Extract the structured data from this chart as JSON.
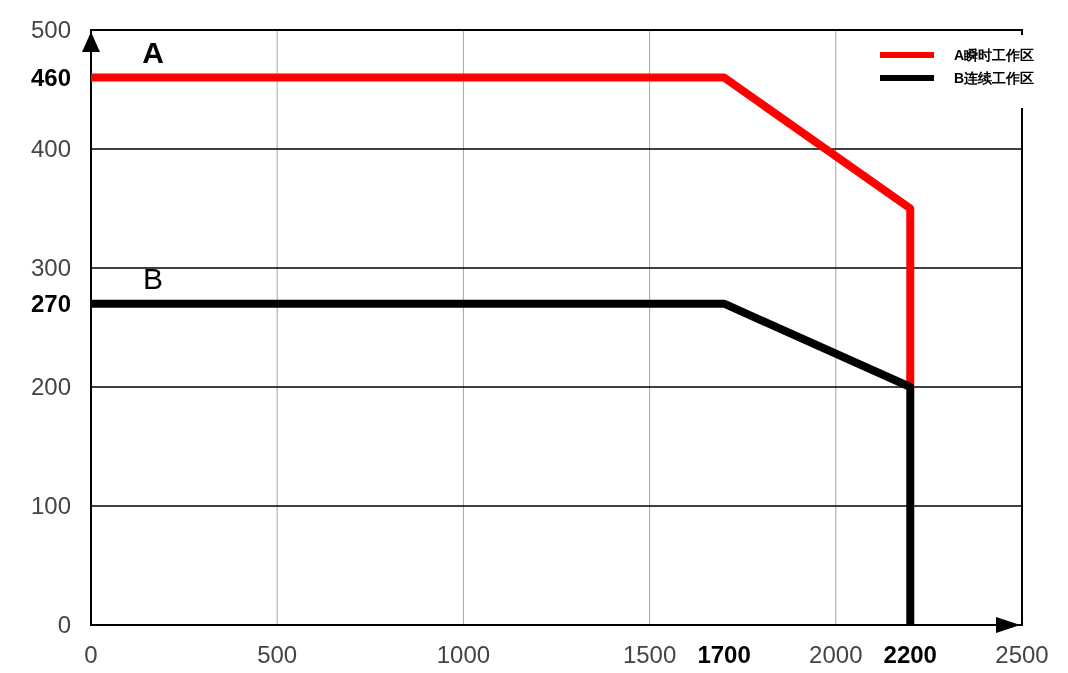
{
  "chart_data": {
    "type": "line",
    "x": [
      0,
      1700,
      2200,
      2200
    ],
    "series": [
      {
        "name": "A瞬时工作区",
        "color": "#ff0000",
        "values": [
          460,
          460,
          350,
          200
        ]
      },
      {
        "name": "B连续工作区",
        "color": "#000000",
        "values": [
          270,
          270,
          200,
          0
        ]
      }
    ],
    "xlim": [
      0,
      2500
    ],
    "ylim": [
      0,
      500
    ],
    "xticks": [
      0,
      500,
      1000,
      1500,
      {
        "value": 1700,
        "label": "1700"
      },
      2000,
      {
        "value": 2200,
        "label": "2200"
      },
      2500
    ],
    "yticks": [
      0,
      100,
      200,
      {
        "value": 270,
        "label": "270"
      },
      300,
      400,
      {
        "value": 460,
        "label": "460"
      },
      500
    ],
    "annotations": [
      "A",
      "B"
    ],
    "grid": true,
    "legend": "top right",
    "line_style": "solid"
  }
}
